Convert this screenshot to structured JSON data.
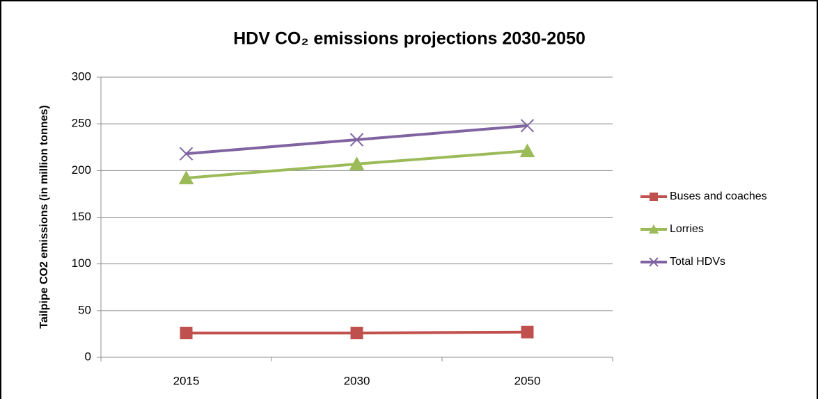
{
  "chart_data": {
    "type": "line",
    "title": "HDV CO₂ emissions projections 2030-2050",
    "y_label": "Tailpipe CO2 emissions (in million tonnes)",
    "categories": [
      "2015",
      "2030",
      "2050"
    ],
    "series": [
      {
        "name": "Buses and coaches",
        "color": "#c0504d",
        "marker": "square",
        "values": [
          26,
          26,
          27
        ]
      },
      {
        "name": "Lorries",
        "color": "#9bbb59",
        "marker": "triangle",
        "values": [
          192,
          207,
          221
        ]
      },
      {
        "name": "Total HDVs",
        "color": "#8064a2",
        "marker": "x",
        "values": [
          218,
          233,
          248
        ]
      }
    ],
    "ylim": [
      0,
      300
    ],
    "yticks": [
      0,
      50,
      100,
      150,
      200,
      250,
      300
    ],
    "grid": true,
    "legend": "right"
  }
}
